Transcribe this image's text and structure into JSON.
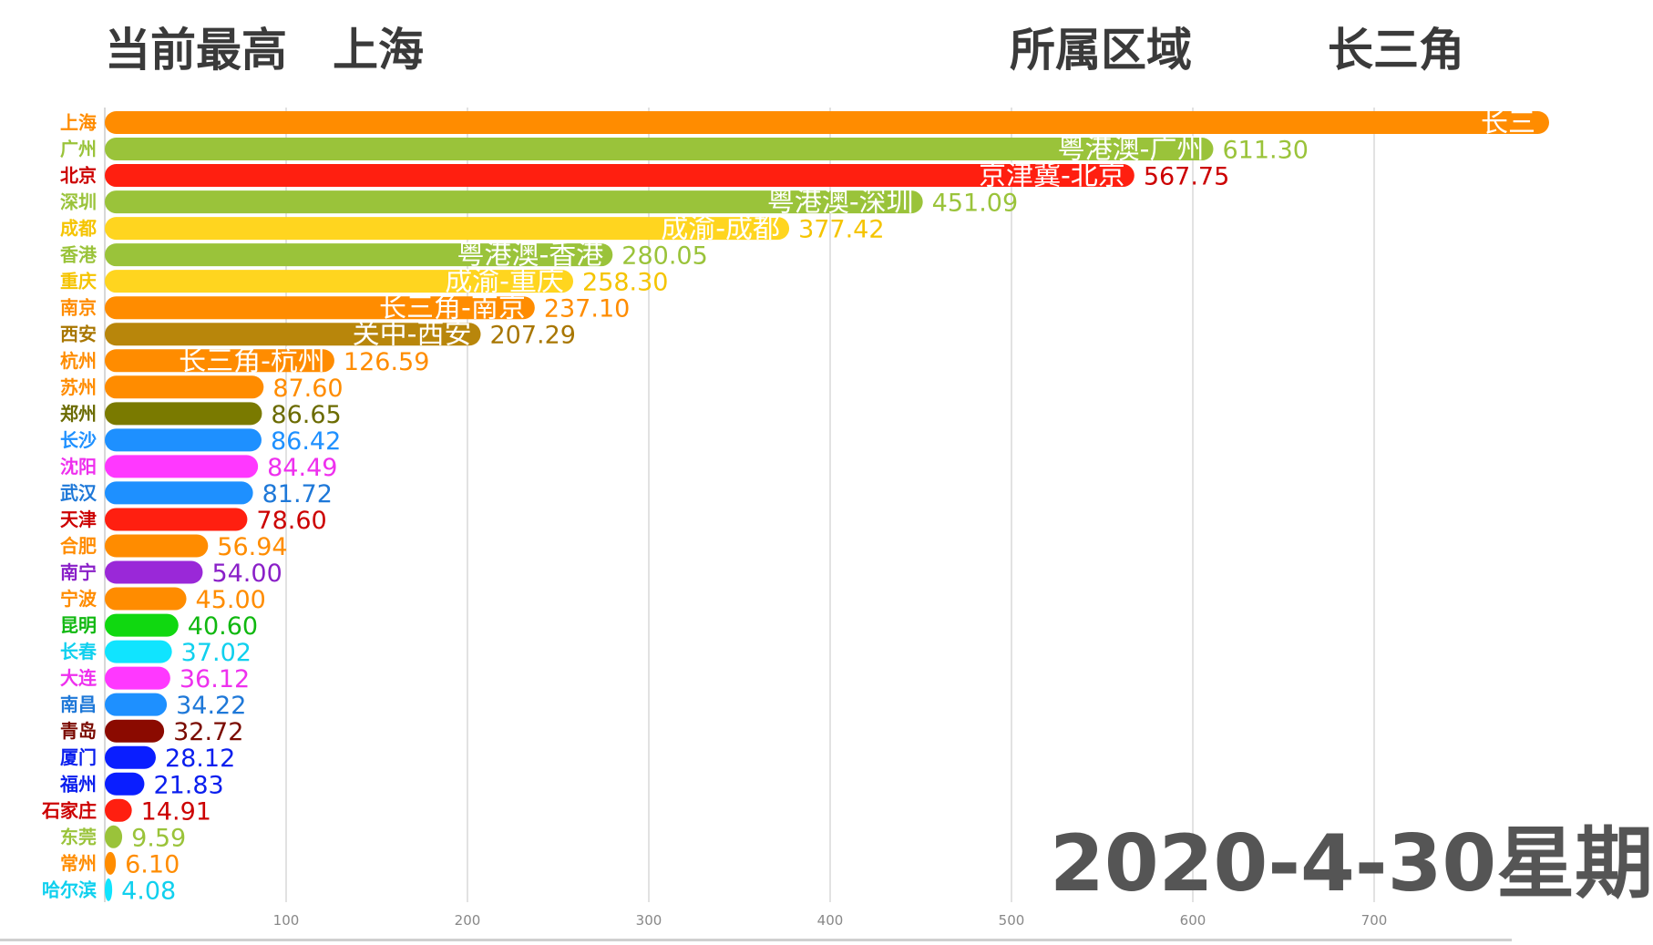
{
  "header": {
    "current_top_label": "当前最高",
    "current_top_city": "上海",
    "region_label": "所属区域",
    "region_value": "长三角"
  },
  "date_label": "2020-4-30星期",
  "chart_data": {
    "type": "bar",
    "orientation": "horizontal",
    "title": "",
    "xlabel": "",
    "ylabel": "",
    "xlim": [
      0,
      825
    ],
    "x_ticks": [
      100,
      200,
      300,
      400,
      500,
      600,
      700
    ],
    "grid": true,
    "categories": [
      "上海",
      "广州",
      "北京",
      "深圳",
      "成都",
      "香港",
      "重庆",
      "南京",
      "西安",
      "杭州",
      "苏州",
      "郑州",
      "长沙",
      "沈阳",
      "武汉",
      "天津",
      "合肥",
      "南宁",
      "宁波",
      "昆明",
      "长春",
      "大连",
      "南昌",
      "青岛",
      "厦门",
      "福州",
      "石家庄",
      "东莞",
      "常州",
      "哈尔滨"
    ],
    "values": [
      null,
      611.3,
      567.75,
      451.09,
      377.42,
      280.05,
      258.3,
      237.1,
      207.29,
      126.59,
      87.6,
      86.65,
      86.42,
      84.49,
      81.72,
      78.6,
      56.94,
      54.0,
      45.0,
      40.6,
      37.02,
      36.12,
      34.22,
      32.72,
      28.12,
      21.83,
      14.91,
      9.59,
      6.1,
      4.08
    ],
    "value_labels": [
      "",
      "611.30",
      "567.75",
      "451.09",
      "377.42",
      "280.05",
      "258.30",
      "237.10",
      "207.29",
      "126.59",
      "87.60",
      "86.65",
      "86.42",
      "84.49",
      "81.72",
      "78.60",
      "56.94",
      "54.00",
      "45.00",
      "40.60",
      "37.02",
      "36.12",
      "34.22",
      "32.72",
      "28.12",
      "21.83",
      "14.91",
      "9.59",
      "6.10",
      "4.08"
    ],
    "bar_labels": [
      "长三",
      "粤港澳-广州",
      "京津冀-北京",
      "粤港澳-深圳",
      "成渝-成都",
      "粤港澳-香港",
      "成渝-重庆",
      "长三角-南京",
      "关中-西安",
      "长三角-杭州",
      "",
      "",
      "",
      "",
      "",
      "",
      "",
      "",
      "",
      "",
      "",
      "",
      "",
      "",
      "",
      "",
      "",
      "",
      "",
      ""
    ],
    "colors": [
      "#ff8c00",
      "#9ac33a",
      "#ff1f10",
      "#9ac33a",
      "#ffd51f",
      "#9ac33a",
      "#ffd51f",
      "#ff8c00",
      "#b8860b",
      "#ff8c00",
      "#ff8c00",
      "#7a7a00",
      "#1e90ff",
      "#ff38ff",
      "#1e90ff",
      "#ff1f10",
      "#ff8c00",
      "#9a28d8",
      "#ff8c00",
      "#10d810",
      "#10e4ff",
      "#ff38ff",
      "#1e90ff",
      "#8b0a00",
      "#0a1eff",
      "#0a1eff",
      "#ff1f10",
      "#9ac33a",
      "#ff8c00",
      "#10e4ff"
    ],
    "label_colors": [
      "#ff8c00",
      "#9ac33a",
      "#cc0000",
      "#9ac33a",
      "#f5c400",
      "#9ac33a",
      "#f5c400",
      "#ff8c00",
      "#a87600",
      "#ff8c00",
      "#ff8c00",
      "#6b6b00",
      "#1e90ff",
      "#ee30ee",
      "#1e78d8",
      "#cc0000",
      "#ff8c00",
      "#8a20c8",
      "#ff8c00",
      "#10b810",
      "#10d0ee",
      "#ee30ee",
      "#1e78d8",
      "#7a0a00",
      "#0a1eee",
      "#0a1eee",
      "#cc0000",
      "#9ac33a",
      "#ff8c00",
      "#10d0ee"
    ]
  }
}
